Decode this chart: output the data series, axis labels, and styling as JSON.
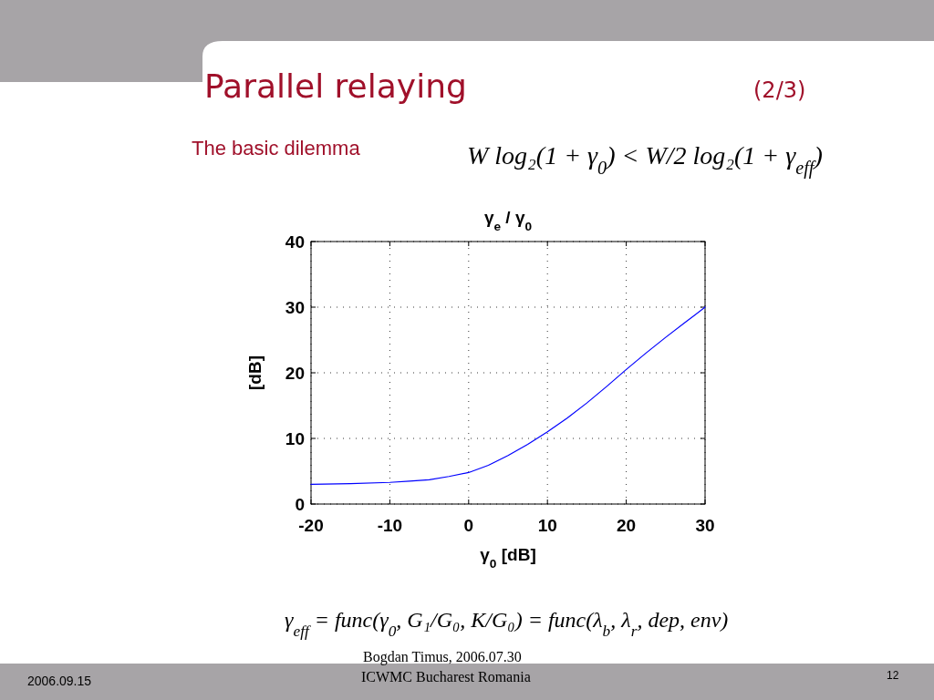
{
  "chart_data": {
    "type": "line",
    "title": "γ$_{e}$ / γ$_{0}$",
    "xlabel": "γ$_{0}$  [dB]",
    "ylabel": "[dB]",
    "x": [
      -20,
      -15,
      -10,
      -7.5,
      -5,
      -2.5,
      0,
      2.5,
      5,
      7.5,
      10,
      12.5,
      15,
      17.5,
      20,
      22.5,
      25,
      27.5,
      30
    ],
    "series": [
      {
        "color": "#0000ff",
        "values": [
          3,
          3.1,
          3.3,
          3.5,
          3.7,
          4.2,
          4.8,
          5.9,
          7.4,
          9.1,
          11,
          13.1,
          15.4,
          17.9,
          20.5,
          23,
          25.4,
          27.7,
          30
        ]
      }
    ],
    "xlim": [
      -20,
      30
    ],
    "xticks": [
      -20,
      -10,
      0,
      10,
      20,
      30
    ],
    "ylim": [
      0,
      40
    ],
    "yticks": [
      0,
      10,
      20,
      30,
      40
    ],
    "grid": true,
    "line_style": "solid",
    "marker": "none",
    "annotations": [
      "Parallel relaying",
      "(2/3)",
      "The basic dilemma",
      "W log₂(1 + γ$_{0}$) < W/2 log₂(1 + γ$_{eff}$)",
      "γ$_{eff}$ = func(γ$_{0}$, G₁/G₀, K/G₀) = func(λ$_{b}$, λ$_{r}$, dep, env)",
      "Bogdan Timus,    2006.07.30",
      "ICWMC Bucharest Romania",
      "2006.09.15",
      "12"
    ]
  }
}
